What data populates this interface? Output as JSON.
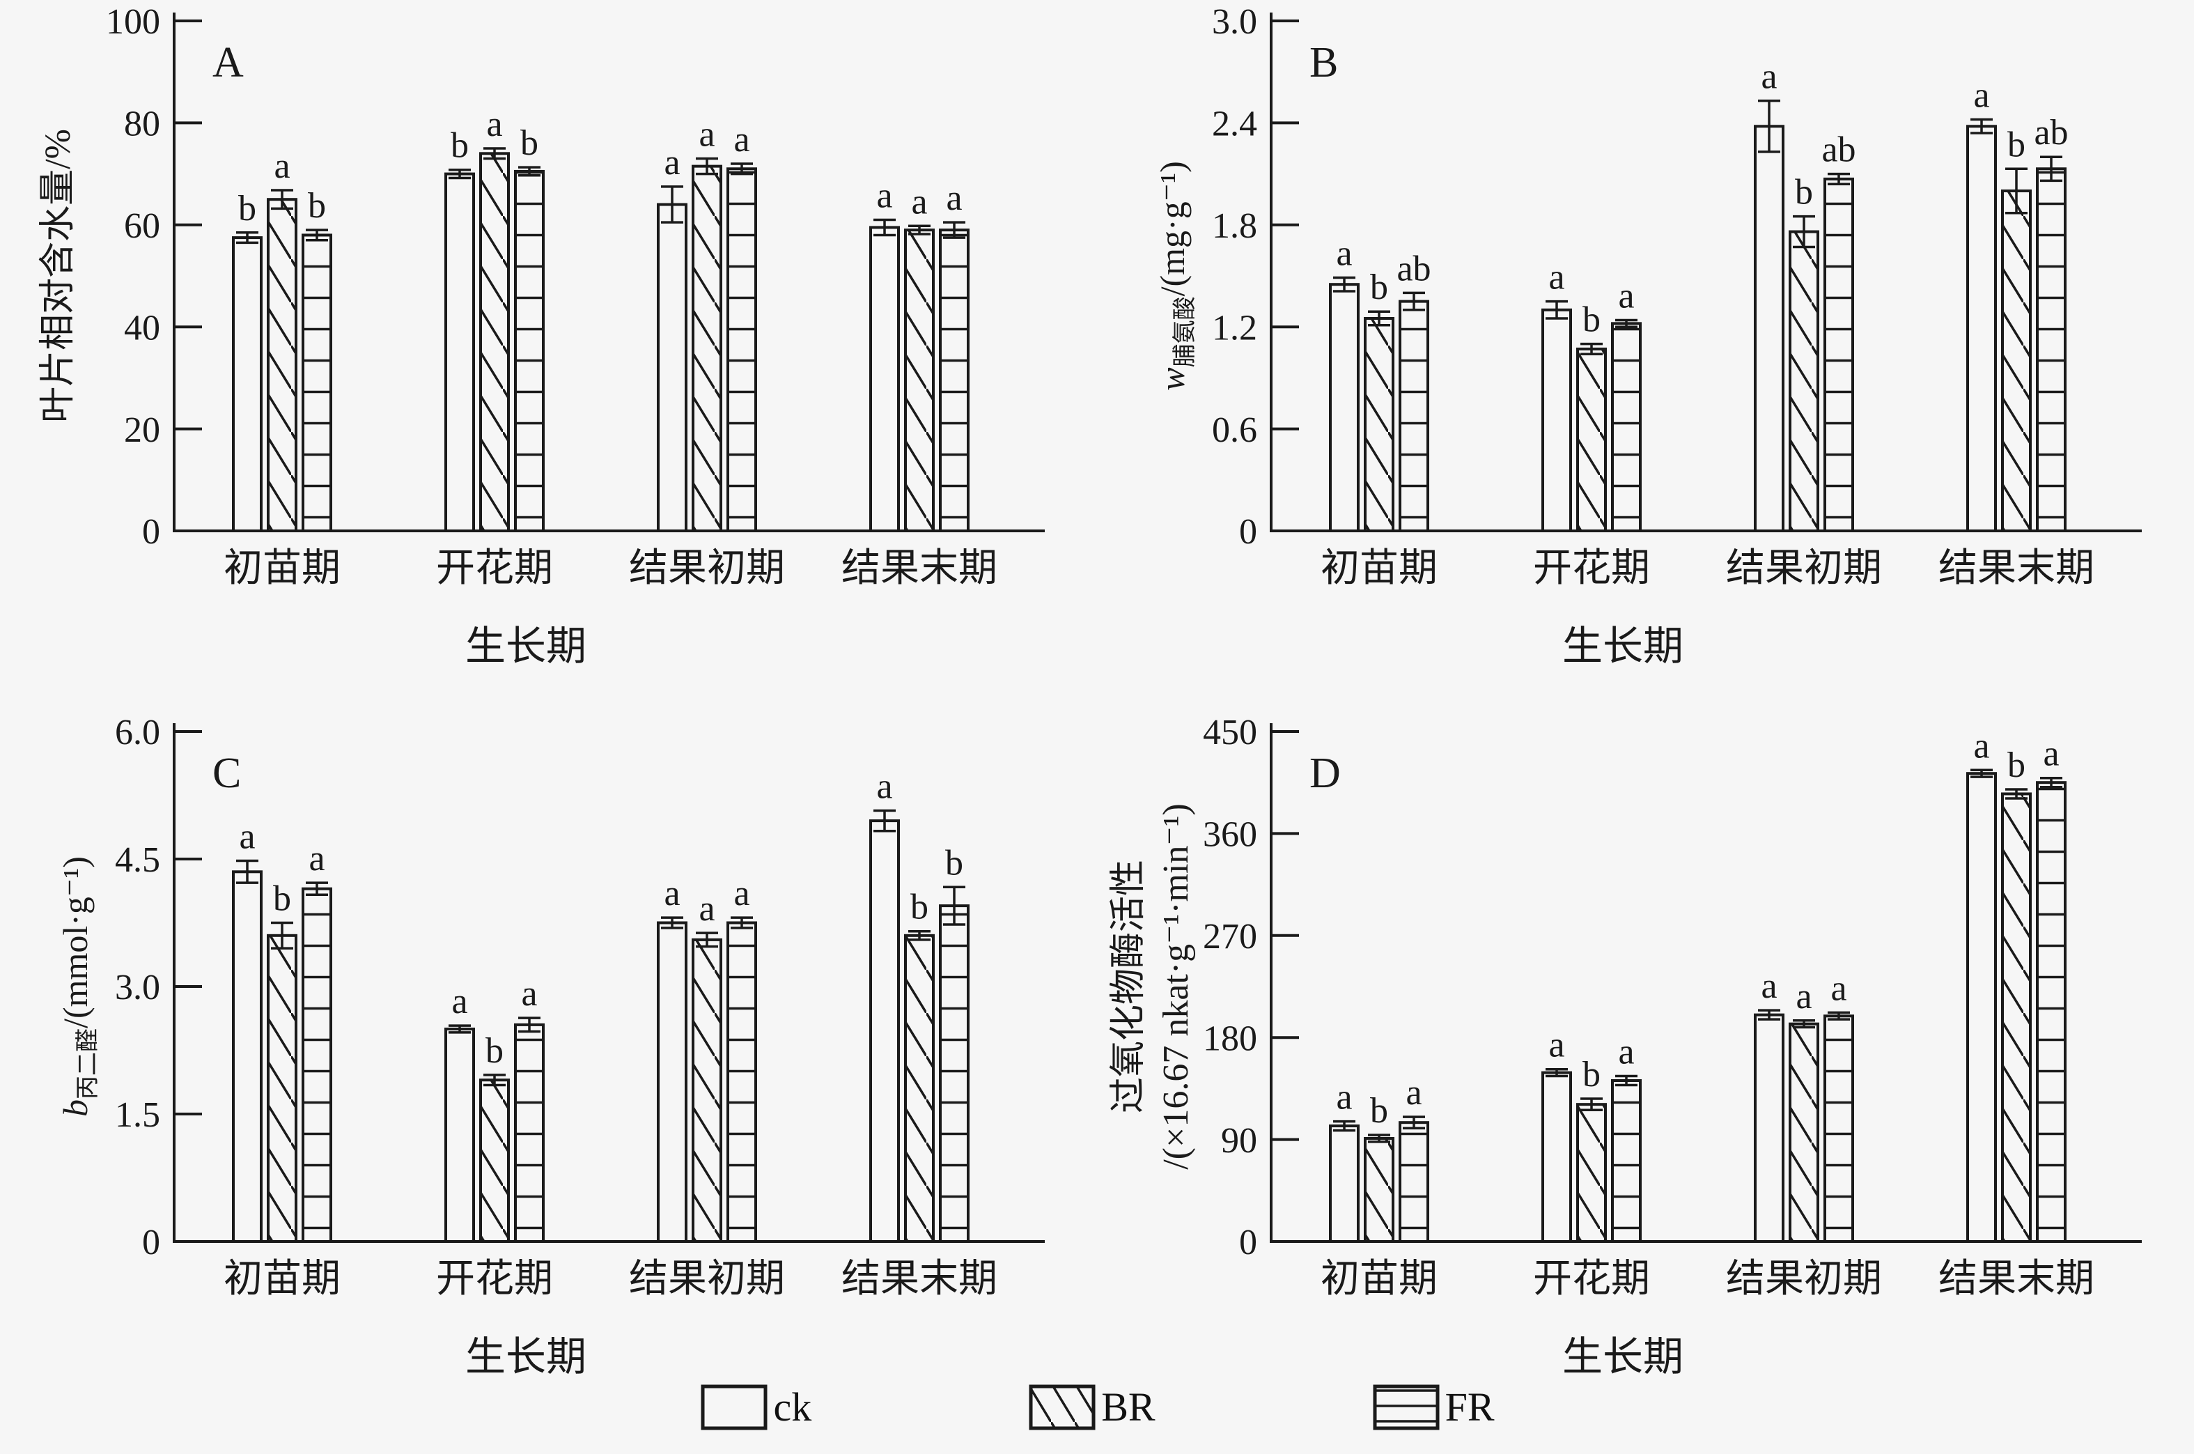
{
  "figure": {
    "background": "#f6f6f6",
    "ink": "#1a1a1a",
    "xlabel": "生长期",
    "categories": [
      "初苗期",
      "开花期",
      "结果初期",
      "结果末期"
    ]
  },
  "legend": {
    "items": [
      {
        "label": "ck",
        "pattern": "plain"
      },
      {
        "label": "BR",
        "pattern": "diagonal"
      },
      {
        "label": "FR",
        "pattern": "horizontal"
      }
    ]
  },
  "chart_data": [
    {
      "id": "A",
      "type": "bar",
      "panel_label": "A",
      "ylabel_lines": [
        {
          "prefix": "",
          "sub": "",
          "rest": "叶片相对含水量/%"
        }
      ],
      "ylabel_x": [
        100
      ],
      "ylim": [
        0,
        100
      ],
      "yticks": [
        "0",
        "20",
        "40",
        "60",
        "80",
        "100"
      ],
      "xlabel": "生长期",
      "categories": [
        "初苗期",
        "开花期",
        "结果初期",
        "结果末期"
      ],
      "series": [
        {
          "name": "ck",
          "pattern": "plain",
          "values": [
            57.5,
            70,
            64,
            59.5
          ],
          "errors": [
            1.0,
            0.8,
            3.5,
            1.5
          ],
          "letters": [
            "b",
            "b",
            "a",
            "a"
          ]
        },
        {
          "name": "BR",
          "pattern": "diagonal",
          "values": [
            65,
            74,
            71.5,
            59
          ],
          "errors": [
            1.8,
            1.0,
            1.5,
            0.8
          ],
          "letters": [
            "a",
            "a",
            "a",
            "a"
          ]
        },
        {
          "name": "FR",
          "pattern": "horizontal",
          "values": [
            58,
            70.5,
            71,
            59
          ],
          "errors": [
            1.0,
            0.8,
            1.0,
            1.5
          ],
          "letters": [
            "b",
            "b",
            "a",
            "a"
          ]
        }
      ]
    },
    {
      "id": "B",
      "type": "bar",
      "panel_label": "B",
      "ylabel_lines": [
        {
          "prefix": "w",
          "sub": "脯氨酸",
          "rest": "/(mg·g⁻¹)"
        }
      ],
      "ylabel_x": [
        125
      ],
      "ylim": [
        0,
        3.0
      ],
      "yticks": [
        "0",
        "0.6",
        "1.2",
        "1.8",
        "2.4",
        "3.0"
      ],
      "xlabel": "生长期",
      "categories": [
        "初苗期",
        "开花期",
        "结果初期",
        "结果末期"
      ],
      "series": [
        {
          "name": "ck",
          "pattern": "plain",
          "values": [
            1.45,
            1.3,
            2.38,
            2.38
          ],
          "errors": [
            0.04,
            0.05,
            0.15,
            0.04
          ],
          "letters": [
            "a",
            "a",
            "a",
            "a"
          ]
        },
        {
          "name": "BR",
          "pattern": "diagonal",
          "values": [
            1.25,
            1.07,
            1.76,
            2.0
          ],
          "errors": [
            0.04,
            0.03,
            0.09,
            0.13
          ],
          "letters": [
            "b",
            "b",
            "b",
            "b"
          ]
        },
        {
          "name": "FR",
          "pattern": "horizontal",
          "values": [
            1.35,
            1.22,
            2.07,
            2.13
          ],
          "errors": [
            0.05,
            0.02,
            0.03,
            0.07
          ],
          "letters": [
            "ab",
            "a",
            "ab",
            "ab"
          ]
        }
      ]
    },
    {
      "id": "C",
      "type": "bar",
      "panel_label": "C",
      "ylabel_lines": [
        {
          "prefix": "b",
          "sub": "丙二醛",
          "rest": "/(mmol·g⁻¹)"
        }
      ],
      "ylabel_x": [
        125
      ],
      "ylim": [
        0,
        6.0
      ],
      "yticks": [
        "0",
        "1.5",
        "3.0",
        "4.5",
        "6.0"
      ],
      "xlabel": "生长期",
      "categories": [
        "初苗期",
        "开花期",
        "结果初期",
        "结果末期"
      ],
      "series": [
        {
          "name": "ck",
          "pattern": "plain",
          "values": [
            4.35,
            2.5,
            3.75,
            4.95
          ],
          "errors": [
            0.13,
            0.04,
            0.06,
            0.12
          ],
          "letters": [
            "a",
            "a",
            "a",
            "a"
          ]
        },
        {
          "name": "BR",
          "pattern": "diagonal",
          "values": [
            3.6,
            1.9,
            3.55,
            3.6
          ],
          "errors": [
            0.15,
            0.06,
            0.08,
            0.05
          ],
          "letters": [
            "b",
            "b",
            "a",
            "b"
          ]
        },
        {
          "name": "FR",
          "pattern": "horizontal",
          "values": [
            4.15,
            2.55,
            3.75,
            3.95
          ],
          "errors": [
            0.07,
            0.08,
            0.06,
            0.22
          ],
          "letters": [
            "a",
            "a",
            "a",
            "b"
          ]
        }
      ]
    },
    {
      "id": "D",
      "type": "bar",
      "panel_label": "D",
      "ylabel_lines": [
        {
          "prefix": "",
          "sub": "",
          "rest": "过氧化物酶活性"
        },
        {
          "prefix": "",
          "sub": "",
          "rest": "/(×16.67 nkat·g⁻¹·min⁻¹)"
        }
      ],
      "ylabel_x": [
        62,
        130
      ],
      "ylim": [
        0,
        450
      ],
      "yticks": [
        "0",
        "90",
        "180",
        "270",
        "360",
        "450"
      ],
      "xlabel": "生长期",
      "categories": [
        "初苗期",
        "开花期",
        "结果初期",
        "结果末期"
      ],
      "series": [
        {
          "name": "ck",
          "pattern": "plain",
          "values": [
            102,
            149,
            200,
            413
          ],
          "errors": [
            4,
            3,
            4,
            3
          ],
          "letters": [
            "a",
            "a",
            "a",
            "a"
          ]
        },
        {
          "name": "BR",
          "pattern": "diagonal",
          "values": [
            91,
            121,
            192,
            395
          ],
          "errors": [
            3,
            5,
            3,
            4
          ],
          "letters": [
            "b",
            "b",
            "a",
            "b"
          ]
        },
        {
          "name": "FR",
          "pattern": "horizontal",
          "values": [
            105,
            142,
            199,
            405
          ],
          "errors": [
            5,
            4,
            3,
            4
          ],
          "letters": [
            "a",
            "a",
            "a",
            "a"
          ]
        }
      ]
    }
  ]
}
